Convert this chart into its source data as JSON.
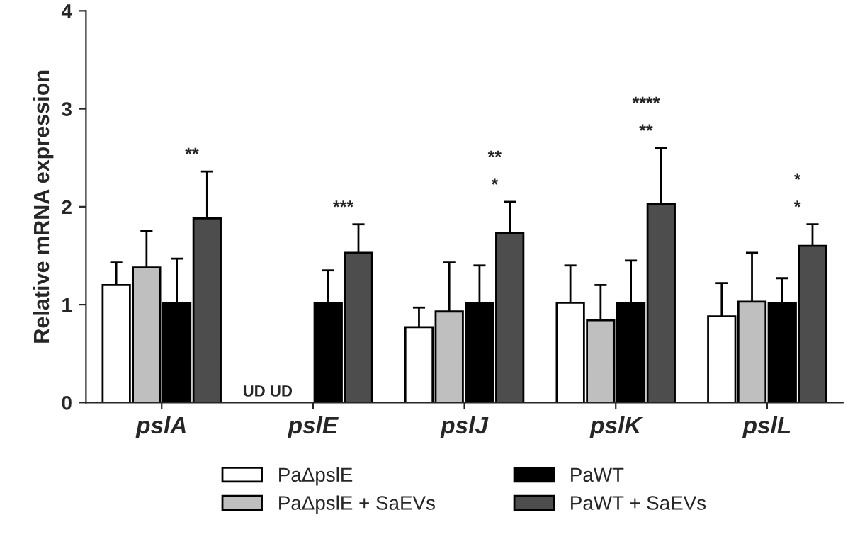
{
  "chart_data": {
    "type": "bar",
    "ylabel": "Relative mRNA expression",
    "categories": [
      "pslA",
      "pslE",
      "pslJ",
      "pslK",
      "pslL"
    ],
    "series": [
      {
        "name": "PaΔpslE",
        "color": "#ffffff",
        "values": [
          1.2,
          null,
          0.77,
          1.02,
          0.88
        ],
        "errors": [
          [
            1.2,
            1.43
          ],
          null,
          [
            0.77,
            0.97
          ],
          [
            1.02,
            1.4
          ],
          [
            0.88,
            1.22
          ]
        ]
      },
      {
        "name": "PaΔpslE + SaEVs",
        "color": "#bfbfbf",
        "values": [
          1.38,
          null,
          0.93,
          0.84,
          1.03
        ],
        "errors": [
          [
            1.38,
            1.75
          ],
          null,
          [
            0.93,
            1.43
          ],
          [
            0.84,
            1.2
          ],
          [
            1.03,
            1.53
          ]
        ]
      },
      {
        "name": "PaWT",
        "color": "#000000",
        "values": [
          1.02,
          1.02,
          1.02,
          1.02,
          1.02
        ],
        "errors": [
          [
            1.02,
            1.47
          ],
          [
            1.02,
            1.35
          ],
          [
            1.02,
            1.4
          ],
          [
            1.02,
            1.45
          ],
          [
            1.02,
            1.27
          ]
        ]
      },
      {
        "name": "PaWT + SaEVs",
        "color": "#4d4d4d",
        "values": [
          1.88,
          1.53,
          1.73,
          2.03,
          1.6
        ],
        "errors": [
          [
            1.88,
            2.36
          ],
          [
            1.53,
            1.82
          ],
          [
            1.73,
            2.05
          ],
          [
            2.03,
            2.6
          ],
          [
            1.6,
            1.82
          ]
        ]
      }
    ],
    "ylim": [
      0,
      4
    ],
    "yticks": [
      0,
      1,
      2,
      3,
      4
    ],
    "grid": false,
    "legend": "bottom",
    "annotations": [
      "UD UD",
      "**",
      "***",
      "*",
      "**",
      "**",
      "****",
      "*",
      "*"
    ]
  }
}
